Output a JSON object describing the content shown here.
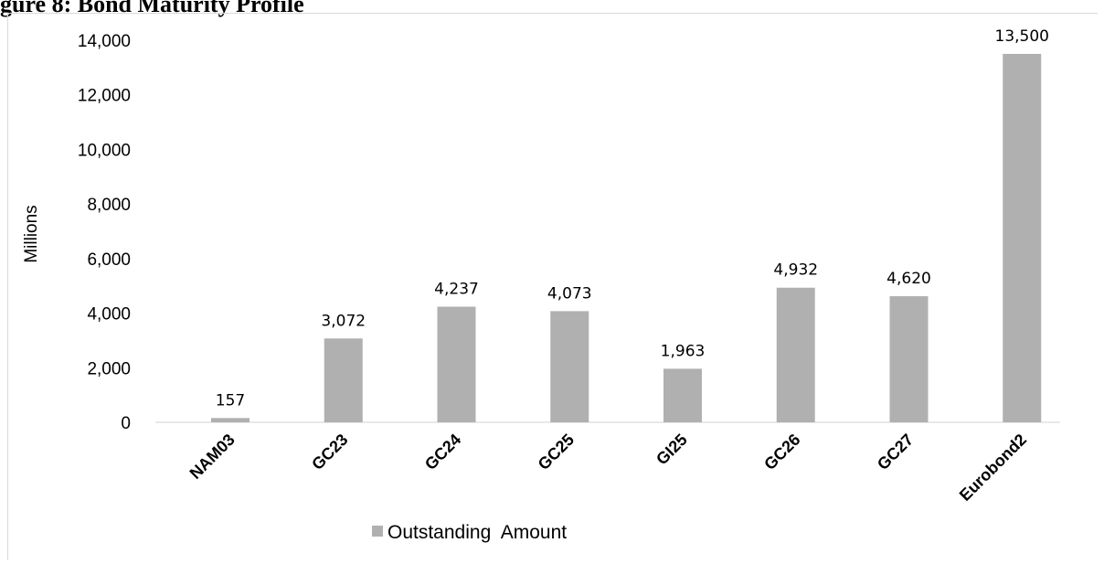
{
  "figure_title": "gure 8: Bond Maturity Profile",
  "chart_data": {
    "type": "bar",
    "categories": [
      "NAM03",
      "GC23",
      "GC24",
      "GC25",
      "GI25",
      "GC26",
      "GC27",
      "Eurobond2"
    ],
    "series": [
      {
        "name": "Outstanding  Amount",
        "values": [
          157,
          3072,
          4237,
          4073,
          1963,
          4932,
          4620,
          13500
        ]
      }
    ],
    "data_labels": [
      "157",
      "3,072",
      "4,237",
      "4,073",
      "1,963",
      "4,932",
      "4,620",
      "13,500"
    ],
    "y_ticks": [
      "0",
      "2,000",
      "4,000",
      "6,000",
      "8,000",
      "10,000",
      "12,000",
      "14,000"
    ],
    "ylabel": "Millions",
    "xlabel": "",
    "ylim": [
      0,
      14000
    ],
    "bar_color": "#b0b0b0",
    "grid": false,
    "legend_position": "bottom"
  }
}
